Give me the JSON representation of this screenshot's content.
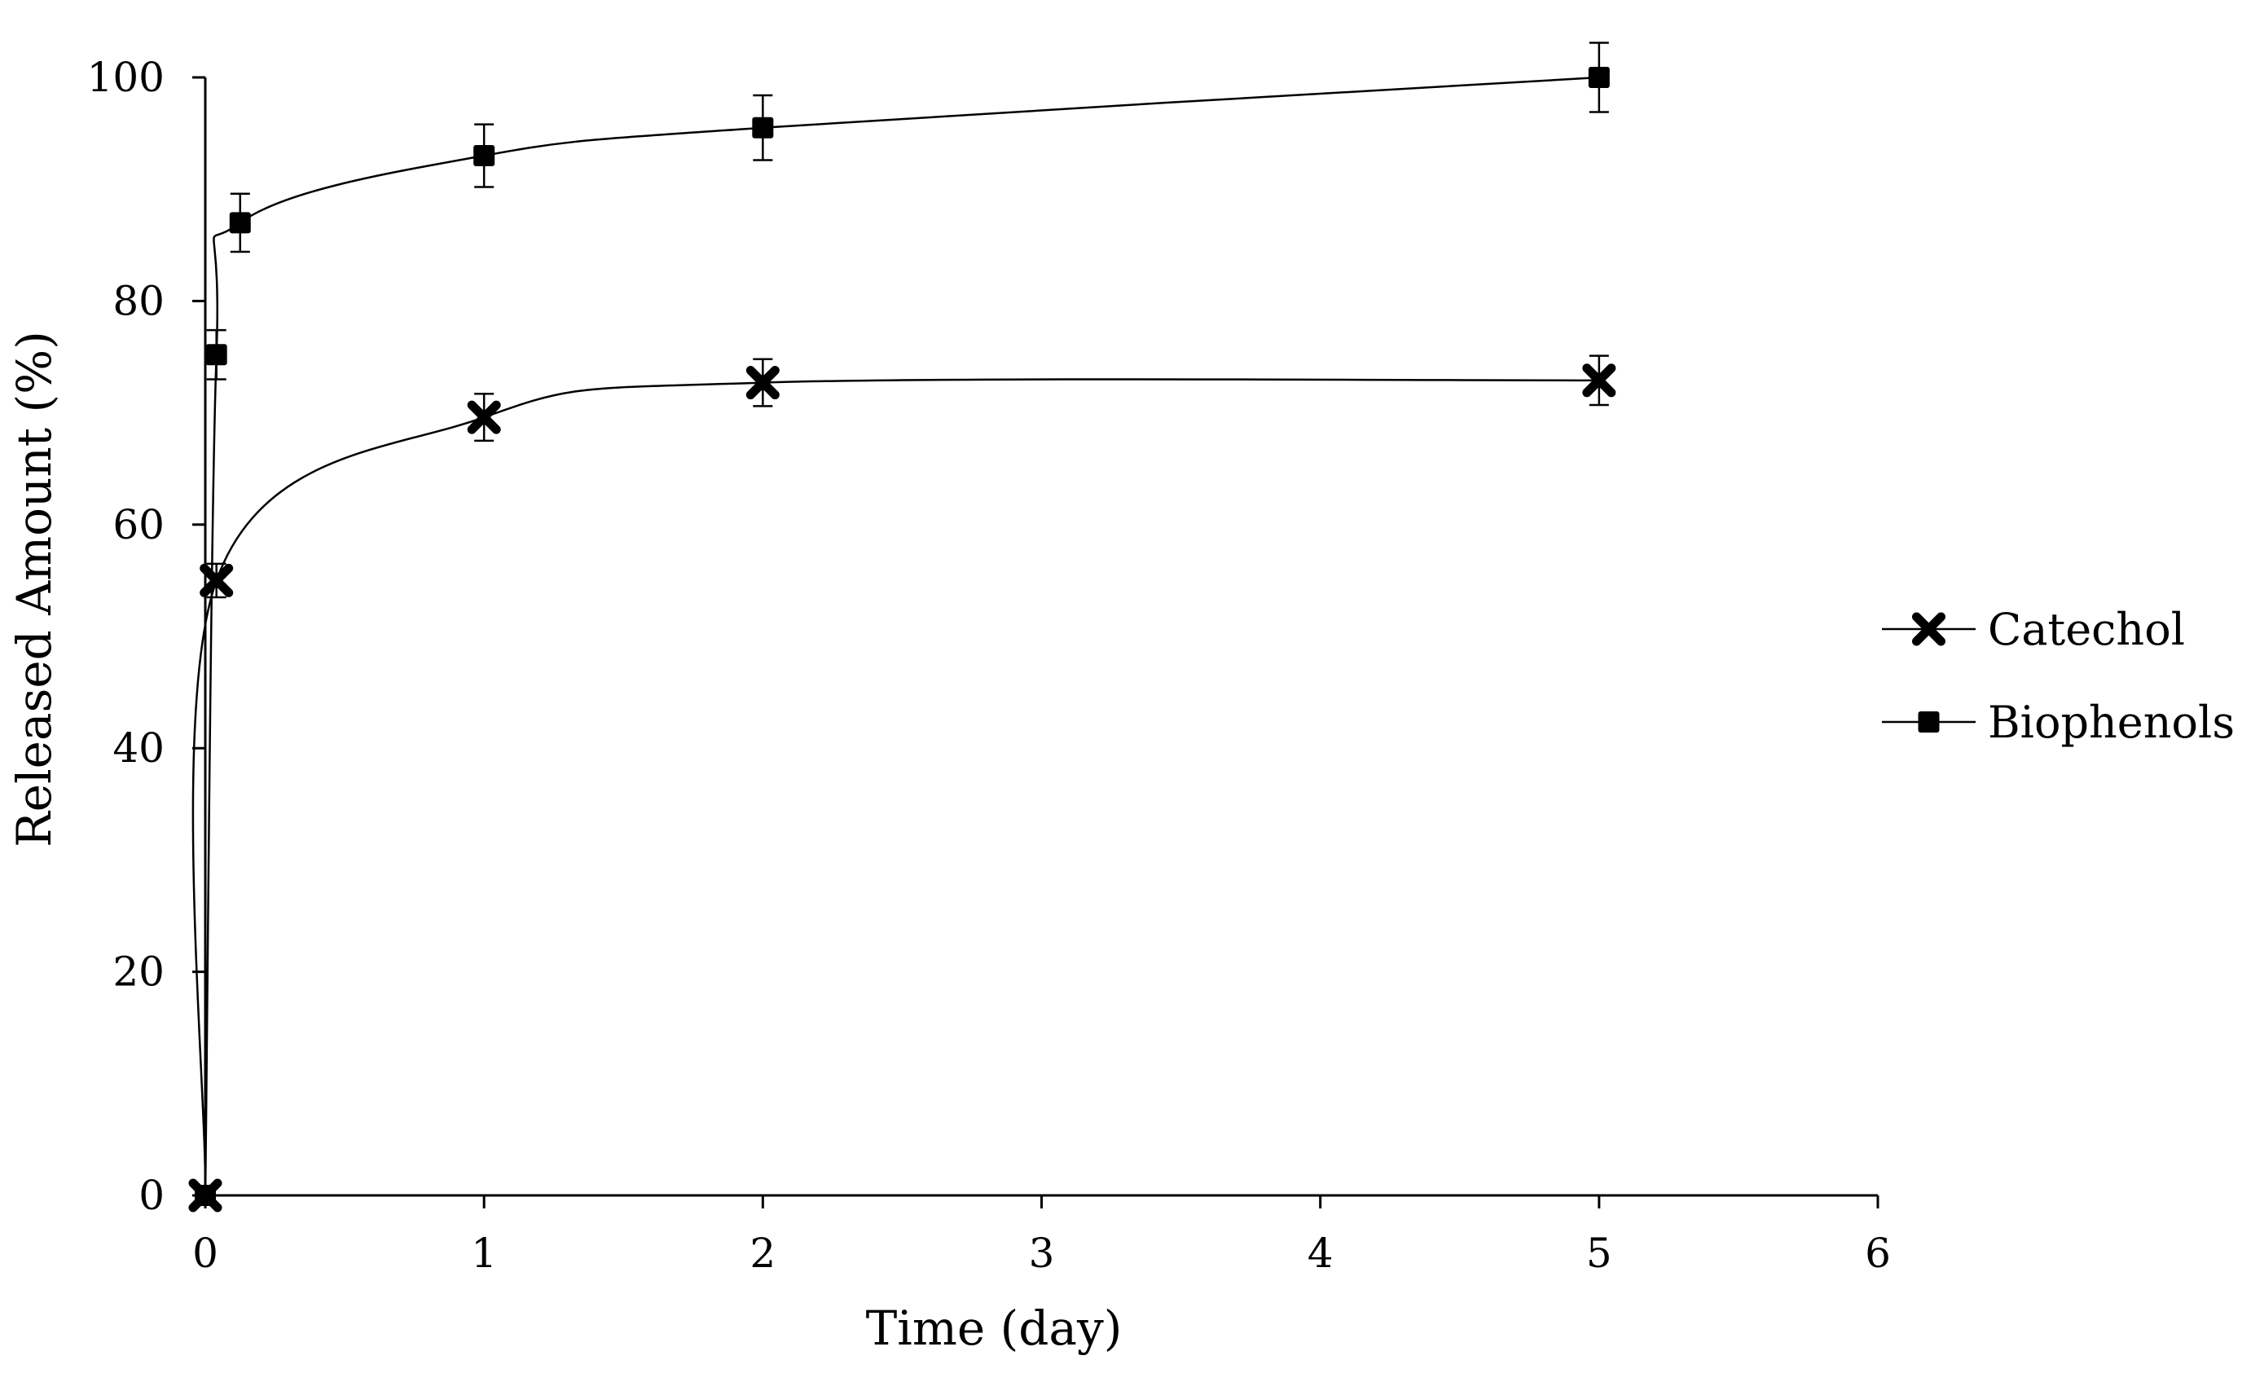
{
  "chart_data": {
    "type": "line",
    "title": "",
    "xlabel": "Time (day)",
    "ylabel": "Released Amount (%)",
    "xlim": [
      0,
      6
    ],
    "ylim": [
      0,
      100
    ],
    "x_ticks": [
      0,
      1,
      2,
      3,
      4,
      5,
      6
    ],
    "y_ticks": [
      0,
      20,
      40,
      60,
      80,
      100
    ],
    "grid": false,
    "legend_position": "right",
    "line_color": "#000000",
    "series": [
      {
        "name": "Catechol",
        "marker": "cross",
        "x": [
          0,
          0.04,
          1,
          2,
          5
        ],
        "y": [
          0,
          55,
          69.6,
          72.7,
          72.9
        ],
        "error": [
          0,
          1.5,
          2.1,
          2.1,
          2.2
        ]
      },
      {
        "name": "Biophenols",
        "marker": "square",
        "x": [
          0,
          0.04,
          0.125,
          1,
          2,
          5
        ],
        "y": [
          0,
          75.2,
          87,
          93,
          95.5,
          100
        ],
        "error": [
          0,
          2.2,
          2.6,
          2.8,
          2.9,
          3.1
        ]
      }
    ]
  }
}
